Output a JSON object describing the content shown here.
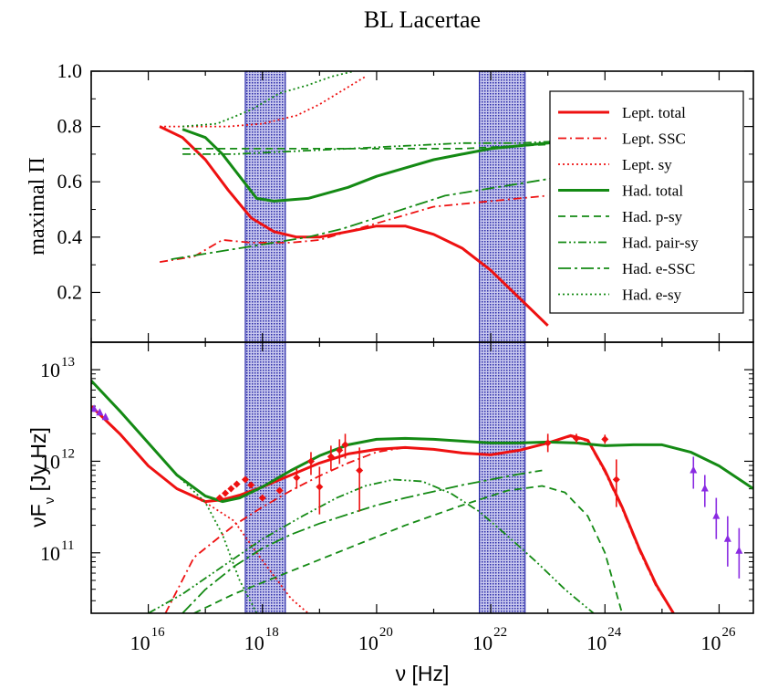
{
  "title": "BL Lacertae",
  "legend_position": "top-right",
  "colors": {
    "leptonic": "#ee1111",
    "hadronic": "#148a14",
    "data_optical": "#8a2be2",
    "band_fill": "#2a2aa8"
  },
  "bands_log10_hz": [
    [
      17.7,
      18.4
    ],
    [
      21.8,
      22.6
    ]
  ],
  "x_axis": {
    "label_text": "ν [Hz]",
    "min_log10": 15.0,
    "max_log10": 26.6,
    "ticks": [
      "10",
      "10",
      "10",
      "10",
      "10",
      "10"
    ],
    "exponents": [
      "16",
      "18",
      "20",
      "22",
      "24",
      "26"
    ],
    "tick_log10": [
      16,
      18,
      20,
      22,
      24,
      26
    ]
  },
  "top_panel": {
    "ylabel": "maximal Π",
    "ylim": [
      0.02,
      1.0
    ],
    "y_ticks": [
      "0.2",
      "0.4",
      "0.6",
      "0.8",
      "1.0"
    ],
    "y_tick_values": [
      0.2,
      0.4,
      0.6,
      0.8,
      1.0
    ]
  },
  "bottom_panel": {
    "ylabel_main": "νF",
    "ylabel_sub": "ν",
    "ylabel_unit": " [Jy Hz]",
    "ylim_log10": [
      10.34,
      13.3
    ],
    "y_ticks": [
      "10",
      "10",
      "10"
    ],
    "y_exponents": [
      "11",
      "12",
      "13"
    ],
    "y_tick_log10": [
      11,
      12,
      13
    ]
  },
  "legend": [
    {
      "label": "Lept. total",
      "color": "#ee1111",
      "dash": "solid"
    },
    {
      "label": "Lept. SSC",
      "color": "#ee1111",
      "dash": "dashdot"
    },
    {
      "label": "Lept. sy",
      "color": "#ee1111",
      "dash": "dot"
    },
    {
      "label": "Had. total",
      "color": "#148a14",
      "dash": "solid"
    },
    {
      "label": "Had. p-sy",
      "color": "#148a14",
      "dash": "dash"
    },
    {
      "label": "Had. pair-sy",
      "color": "#148a14",
      "dash": "dashdotdot"
    },
    {
      "label": "Had. e-SSC",
      "color": "#148a14",
      "dash": "longdashdot"
    },
    {
      "label": "Had. e-sy",
      "color": "#148a14",
      "dash": "dot"
    }
  ],
  "chart_data": [
    {
      "type": "line",
      "panel": "top",
      "ylabel": "maximal Π",
      "xscale": "log",
      "series": [
        {
          "name": "Lept. total",
          "x_log10": [
            16.2,
            16.6,
            17.0,
            17.4,
            17.8,
            18.2,
            18.6,
            19.0,
            19.5,
            20.0,
            20.5,
            21.0,
            21.5,
            22.0,
            22.5,
            23.0
          ],
          "y": [
            0.8,
            0.76,
            0.68,
            0.57,
            0.47,
            0.42,
            0.4,
            0.4,
            0.42,
            0.44,
            0.44,
            0.41,
            0.36,
            0.28,
            0.18,
            0.08
          ]
        },
        {
          "name": "Lept. SSC",
          "x_log10": [
            16.2,
            16.8,
            17.3,
            17.8,
            18.5,
            19.0,
            19.5,
            20.0,
            20.5,
            21.0,
            21.5,
            22.0,
            22.5,
            23.0
          ],
          "y": [
            0.31,
            0.33,
            0.39,
            0.38,
            0.38,
            0.39,
            0.42,
            0.45,
            0.48,
            0.51,
            0.52,
            0.53,
            0.54,
            0.55
          ]
        },
        {
          "name": "Lept. sy",
          "x_log10": [
            16.2,
            16.8,
            17.4,
            18.0,
            18.6,
            19.0,
            19.4,
            19.8
          ],
          "y": [
            0.8,
            0.8,
            0.8,
            0.81,
            0.84,
            0.88,
            0.93,
            0.98
          ]
        },
        {
          "name": "Had. total",
          "x_log10": [
            16.6,
            17.0,
            17.3,
            17.6,
            17.9,
            18.2,
            18.8,
            19.5,
            20.0,
            20.5,
            21.0,
            21.5,
            22.0,
            22.5,
            23.0,
            23.5,
            24.0
          ],
          "y": [
            0.79,
            0.76,
            0.7,
            0.62,
            0.54,
            0.53,
            0.54,
            0.58,
            0.62,
            0.65,
            0.68,
            0.7,
            0.72,
            0.73,
            0.74,
            0.75,
            0.76
          ]
        },
        {
          "name": "Had. p-sy",
          "x_log10": [
            16.6,
            17.5,
            18.5,
            19.5,
            20.5,
            21.5,
            22.5,
            23.5,
            24.0
          ],
          "y": [
            0.72,
            0.72,
            0.72,
            0.72,
            0.72,
            0.72,
            0.73,
            0.74,
            0.75
          ]
        },
        {
          "name": "Had. pair-sy",
          "x_log10": [
            16.6,
            17.5,
            18.5,
            19.5,
            20.5,
            21.5,
            22.5,
            23.5,
            24.0
          ],
          "y": [
            0.7,
            0.7,
            0.71,
            0.72,
            0.73,
            0.74,
            0.74,
            0.75,
            0.76
          ]
        },
        {
          "name": "Had. e-SSC",
          "x_log10": [
            16.4,
            17.0,
            17.6,
            18.2,
            18.8,
            19.4,
            20.0,
            20.6,
            21.2,
            21.8,
            22.4,
            23.0,
            23.5,
            24.0
          ],
          "y": [
            0.32,
            0.34,
            0.36,
            0.38,
            0.4,
            0.43,
            0.47,
            0.51,
            0.55,
            0.57,
            0.59,
            0.61,
            0.63,
            0.64
          ]
        },
        {
          "name": "Had. e-sy",
          "x_log10": [
            16.6,
            17.2,
            17.8,
            18.3,
            18.8,
            19.2,
            19.6
          ],
          "y": [
            0.8,
            0.81,
            0.86,
            0.92,
            0.95,
            0.98,
            1.0
          ]
        }
      ]
    },
    {
      "type": "line",
      "panel": "bottom",
      "ylabel": "νFν [Jy Hz]",
      "xscale": "log",
      "yscale": "log",
      "series": [
        {
          "name": "Lept. total",
          "x_log10": [
            15.0,
            15.5,
            16.0,
            16.5,
            17.0,
            17.3,
            17.6,
            18.0,
            18.5,
            19.0,
            19.5,
            20.0,
            20.5,
            21.0,
            21.5,
            22.0,
            22.5,
            23.0,
            23.4,
            23.7,
            24.0,
            24.3,
            24.6,
            24.9,
            25.2
          ],
          "y_log10": [
            12.6,
            12.3,
            11.95,
            11.7,
            11.56,
            11.58,
            11.63,
            11.72,
            11.85,
            11.98,
            12.08,
            12.13,
            12.15,
            12.13,
            12.09,
            12.07,
            12.12,
            12.2,
            12.28,
            12.23,
            11.9,
            11.5,
            11.05,
            10.65,
            10.34
          ]
        },
        {
          "name": "Lept. SSC",
          "x_log10": [
            16.3,
            16.8,
            17.5,
            18.0,
            18.5,
            19.0,
            19.5,
            20.0,
            20.5,
            21.0,
            21.5,
            22.0,
            22.5,
            23.0,
            23.4,
            23.7,
            24.0,
            24.3,
            24.6,
            24.9,
            25.2
          ],
          "y_log10": [
            10.34,
            10.95,
            11.3,
            11.5,
            11.68,
            11.84,
            11.98,
            12.1,
            12.15,
            12.13,
            12.09,
            12.07,
            12.12,
            12.2,
            12.27,
            12.22,
            11.88,
            11.48,
            11.03,
            10.63,
            10.34
          ]
        },
        {
          "name": "Lept. sy",
          "x_log10": [
            15.0,
            15.5,
            16.0,
            16.5,
            17.0,
            17.5,
            17.9,
            18.2,
            18.5,
            18.8
          ],
          "y_log10": [
            12.6,
            12.3,
            11.95,
            11.7,
            11.55,
            11.35,
            11.0,
            10.75,
            10.5,
            10.34
          ]
        },
        {
          "name": "Had. total",
          "x_log10": [
            15.0,
            15.5,
            16.0,
            16.5,
            17.0,
            17.3,
            17.6,
            18.0,
            18.5,
            19.0,
            19.5,
            20.0,
            20.5,
            21.0,
            21.5,
            22.0,
            22.5,
            23.0,
            23.5,
            24.0,
            24.5,
            25.0,
            25.5,
            26.0,
            26.6
          ],
          "y_log10": [
            12.88,
            12.55,
            12.2,
            11.85,
            11.62,
            11.56,
            11.6,
            11.72,
            11.9,
            12.06,
            12.18,
            12.24,
            12.25,
            12.24,
            12.22,
            12.2,
            12.2,
            12.21,
            12.2,
            12.17,
            12.18,
            12.18,
            12.1,
            11.95,
            11.7
          ]
        },
        {
          "name": "Had. p-sy",
          "x_log10": [
            16.8,
            17.5,
            18.5,
            19.5,
            20.5,
            21.5,
            22.3,
            22.9,
            23.3,
            23.7,
            24.0,
            24.3
          ],
          "y_log10": [
            10.34,
            10.55,
            10.8,
            11.05,
            11.3,
            11.52,
            11.68,
            11.73,
            11.66,
            11.4,
            11.0,
            10.34
          ]
        },
        {
          "name": "Had. pair-sy",
          "x_log10": [
            16.0,
            16.6,
            17.3,
            18.0,
            18.7,
            19.3,
            19.8,
            20.3,
            20.8,
            21.3,
            21.8,
            22.3,
            22.8,
            23.3,
            23.8
          ],
          "y_log10": [
            10.34,
            10.55,
            10.85,
            11.15,
            11.4,
            11.6,
            11.73,
            11.8,
            11.78,
            11.65,
            11.45,
            11.18,
            10.9,
            10.6,
            10.34
          ]
        },
        {
          "name": "Had. e-SSC",
          "x_log10": [
            16.6,
            17.0,
            17.5,
            18.0,
            18.5,
            19.0,
            19.5,
            20.0,
            20.5,
            21.0,
            21.5,
            22.0,
            22.5,
            22.9
          ],
          "y_log10": [
            10.34,
            10.6,
            10.85,
            11.05,
            11.2,
            11.32,
            11.42,
            11.52,
            11.6,
            11.67,
            11.74,
            11.8,
            11.86,
            11.9
          ]
        },
        {
          "name": "Had. e-sy",
          "x_log10": [
            15.0,
            15.5,
            16.0,
            16.5,
            17.0,
            17.3,
            17.6,
            17.9
          ],
          "y_log10": [
            12.88,
            12.55,
            12.2,
            11.85,
            11.55,
            11.2,
            10.7,
            10.34
          ]
        }
      ],
      "observations_red": [
        {
          "x_log10": 17.25,
          "y_log10": 11.6,
          "err_lo": 0.03,
          "err_hi": 0.03
        },
        {
          "x_log10": 17.35,
          "y_log10": 11.65,
          "err_lo": 0.03,
          "err_hi": 0.03
        },
        {
          "x_log10": 17.45,
          "y_log10": 11.7,
          "err_lo": 0.03,
          "err_hi": 0.03
        },
        {
          "x_log10": 17.55,
          "y_log10": 11.75,
          "err_lo": 0.03,
          "err_hi": 0.03
        },
        {
          "x_log10": 17.7,
          "y_log10": 11.8,
          "err_lo": 0.03,
          "err_hi": 0.03
        },
        {
          "x_log10": 17.8,
          "y_log10": 11.74,
          "err_lo": 0.03,
          "err_hi": 0.03
        },
        {
          "x_log10": 18.0,
          "y_log10": 11.6,
          "err_lo": 0.03,
          "err_hi": 0.03
        },
        {
          "x_log10": 18.3,
          "y_log10": 11.68,
          "err_lo": 0.03,
          "err_hi": 0.03
        },
        {
          "x_log10": 18.6,
          "y_log10": 11.82,
          "err_lo": 0.12,
          "err_hi": 0.1
        },
        {
          "x_log10": 18.85,
          "y_log10": 12.0,
          "err_lo": 0.15,
          "err_hi": 0.1
        },
        {
          "x_log10": 19.0,
          "y_log10": 11.72,
          "err_lo": 0.3,
          "err_hi": 0.22
        },
        {
          "x_log10": 19.2,
          "y_log10": 12.05,
          "err_lo": 0.15,
          "err_hi": 0.12
        },
        {
          "x_log10": 19.35,
          "y_log10": 12.12,
          "err_lo": 0.15,
          "err_hi": 0.12
        },
        {
          "x_log10": 19.45,
          "y_log10": 12.18,
          "err_lo": 0.15,
          "err_hi": 0.12
        },
        {
          "x_log10": 19.7,
          "y_log10": 11.9,
          "err_lo": 0.45,
          "err_hi": 0.25
        },
        {
          "x_log10": 23.0,
          "y_log10": 12.2,
          "err_lo": 0.1,
          "err_hi": 0.1
        },
        {
          "x_log10": 23.5,
          "y_log10": 12.25,
          "err_lo": 0.05,
          "err_hi": 0.05
        },
        {
          "x_log10": 24.0,
          "y_log10": 12.24,
          "err_lo": 0.05,
          "err_hi": 0.05
        },
        {
          "x_log10": 24.2,
          "y_log10": 11.8,
          "err_lo": 0.3,
          "err_hi": 0.22
        }
      ],
      "observations_purple": [
        {
          "x_log10": 15.05,
          "y_log10": 12.57,
          "err_lo": 0.03,
          "err_hi": 0.03
        },
        {
          "x_log10": 15.15,
          "y_log10": 12.53,
          "err_lo": 0.03,
          "err_hi": 0.03
        },
        {
          "x_log10": 15.25,
          "y_log10": 12.48,
          "err_lo": 0.03,
          "err_hi": 0.03
        },
        {
          "x_log10": 25.55,
          "y_log10": 11.9,
          "err_lo": 0.2,
          "err_hi": 0.15
        },
        {
          "x_log10": 25.75,
          "y_log10": 11.7,
          "err_lo": 0.2,
          "err_hi": 0.15
        },
        {
          "x_log10": 25.95,
          "y_log10": 11.4,
          "err_lo": 0.25,
          "err_hi": 0.2
        },
        {
          "x_log10": 26.15,
          "y_log10": 11.15,
          "err_lo": 0.3,
          "err_hi": 0.25
        },
        {
          "x_log10": 26.35,
          "y_log10": 11.02,
          "err_lo": 0.3,
          "err_hi": 0.25
        }
      ]
    }
  ]
}
